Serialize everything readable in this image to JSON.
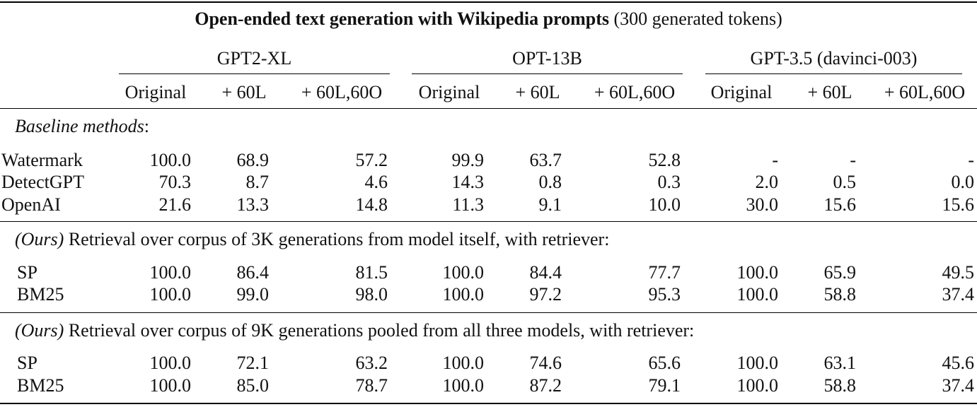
{
  "title": {
    "bold": "Open-ended text generation with Wikipedia prompts",
    "normal": "(300 generated tokens)"
  },
  "model_headers": [
    "GPT2-XL",
    "OPT-13B",
    "GPT-3.5 (davinci-003)"
  ],
  "column_headers": [
    "Original",
    "+ 60L",
    "+ 60L,60O",
    "Original",
    "+ 60L",
    "+ 60L,60O",
    "Original",
    "+ 60L",
    "+ 60L,60O"
  ],
  "sections": [
    {
      "heading_prefix": "",
      "heading": "Baseline methods",
      "heading_suffix": ":",
      "rows": [
        {
          "label": "Watermark",
          "values": [
            "100.0",
            "68.9",
            "57.2",
            "99.9",
            "63.7",
            "52.8",
            "-",
            "-",
            "-"
          ]
        },
        {
          "label": "DetectGPT",
          "values": [
            "70.3",
            "8.7",
            "4.6",
            "14.3",
            "0.8",
            "0.3",
            "2.0",
            "0.5",
            "0.0"
          ]
        },
        {
          "label": "OpenAI",
          "values": [
            "21.6",
            "13.3",
            "14.8",
            "11.3",
            "9.1",
            "10.0",
            "30.0",
            "15.6",
            "15.6"
          ]
        }
      ]
    },
    {
      "heading_prefix": "(Ours)",
      "heading": " Retrieval over corpus of 3K generations from model itself, with retriever:",
      "heading_suffix": "",
      "rows": [
        {
          "label": "SP",
          "values": [
            "100.0",
            "86.4",
            "81.5",
            "100.0",
            "84.4",
            "77.7",
            "100.0",
            "65.9",
            "49.5"
          ]
        },
        {
          "label": "BM25",
          "values": [
            "100.0",
            "99.0",
            "98.0",
            "100.0",
            "97.2",
            "95.3",
            "100.0",
            "58.8",
            "37.4"
          ]
        }
      ]
    },
    {
      "heading_prefix": "(Ours)",
      "heading": " Retrieval over corpus of 9K generations pooled from all three models, with retriever:",
      "heading_suffix": "",
      "rows": [
        {
          "label": "SP",
          "values": [
            "100.0",
            "72.1",
            "63.2",
            "100.0",
            "74.6",
            "65.6",
            "100.0",
            "63.1",
            "45.6"
          ]
        },
        {
          "label": "BM25",
          "values": [
            "100.0",
            "85.0",
            "78.7",
            "100.0",
            "87.2",
            "79.1",
            "100.0",
            "58.8",
            "37.4"
          ]
        }
      ]
    }
  ]
}
